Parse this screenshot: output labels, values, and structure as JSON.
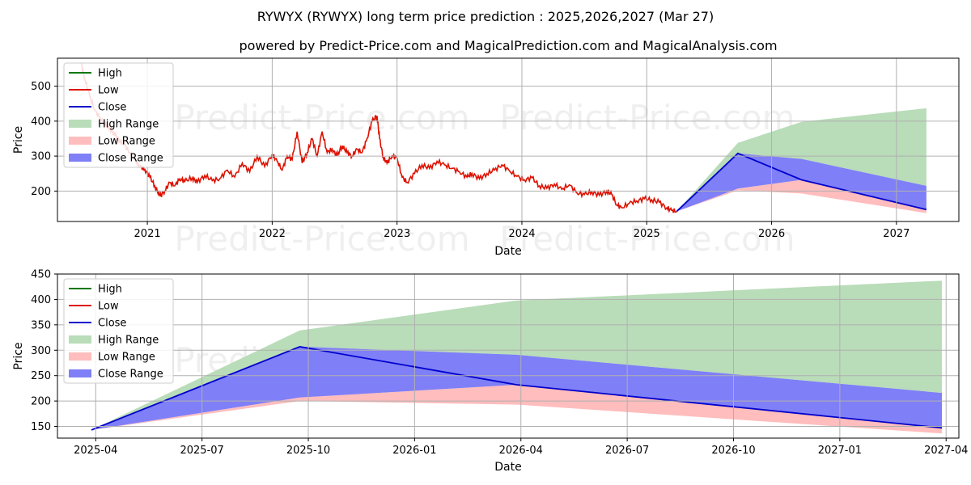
{
  "title": "RYWYX (RYWYX) long term price prediction : 2025,2026,2027 (Mar 27)",
  "subtitle": "powered by Predict-Price.com and MagicalPrediction.com and MagicalAnalysis.com",
  "watermark": "Predict-Price.com",
  "legend": [
    "High",
    "Low",
    "Close",
    "High Range",
    "Low Range",
    "Close Range"
  ],
  "colors": {
    "high": "#007700",
    "low": "#dd1100",
    "close": "#0000cc",
    "high_range": "#b9dcb9",
    "low_range": "#ffbdbd",
    "close_range": "#7f7ff7",
    "grid": "#b0b0b0"
  },
  "chart_data": [
    {
      "type": "line",
      "name": "long-term",
      "xlabel": "Date",
      "ylabel": "Price",
      "grid": true,
      "legend_position": "upper-left",
      "xlim": [
        2020.28,
        2027.5
      ],
      "ylim": [
        113,
        580
      ],
      "x_ticks": [
        {
          "label": "2021",
          "x": 2021.0
        },
        {
          "label": "2022",
          "x": 2022.0
        },
        {
          "label": "2023",
          "x": 2023.0
        },
        {
          "label": "2024",
          "x": 2024.0
        },
        {
          "label": "2025",
          "x": 2025.0
        },
        {
          "label": "2026",
          "x": 2026.0
        },
        {
          "label": "2027",
          "x": 2027.0
        }
      ],
      "y_ticks": [
        200,
        300,
        400,
        500
      ],
      "history": {
        "name": "Low",
        "points": [
          [
            2020.47,
            565
          ],
          [
            2020.5,
            520
          ],
          [
            2020.54,
            470
          ],
          [
            2020.58,
            430
          ],
          [
            2020.62,
            410
          ],
          [
            2020.66,
            390
          ],
          [
            2020.7,
            380
          ],
          [
            2020.74,
            360
          ],
          [
            2020.78,
            345
          ],
          [
            2020.82,
            330
          ],
          [
            2020.86,
            310
          ],
          [
            2020.9,
            290
          ],
          [
            2020.94,
            270
          ],
          [
            2020.98,
            262
          ],
          [
            2021.02,
            240
          ],
          [
            2021.06,
            215
          ],
          [
            2021.1,
            185
          ],
          [
            2021.14,
            200
          ],
          [
            2021.18,
            225
          ],
          [
            2021.22,
            215
          ],
          [
            2021.26,
            235
          ],
          [
            2021.3,
            228
          ],
          [
            2021.36,
            238
          ],
          [
            2021.4,
            225
          ],
          [
            2021.46,
            245
          ],
          [
            2021.52,
            230
          ],
          [
            2021.58,
            235
          ],
          [
            2021.64,
            260
          ],
          [
            2021.7,
            240
          ],
          [
            2021.76,
            280
          ],
          [
            2021.82,
            255
          ],
          [
            2021.88,
            300
          ],
          [
            2021.94,
            270
          ],
          [
            2022.0,
            305
          ],
          [
            2022.04,
            285
          ],
          [
            2022.08,
            260
          ],
          [
            2022.12,
            300
          ],
          [
            2022.16,
            290
          ],
          [
            2022.2,
            370
          ],
          [
            2022.24,
            280
          ],
          [
            2022.28,
            310
          ],
          [
            2022.32,
            350
          ],
          [
            2022.36,
            300
          ],
          [
            2022.4,
            370
          ],
          [
            2022.44,
            310
          ],
          [
            2022.48,
            320
          ],
          [
            2022.52,
            300
          ],
          [
            2022.56,
            330
          ],
          [
            2022.6,
            310
          ],
          [
            2022.64,
            300
          ],
          [
            2022.68,
            320
          ],
          [
            2022.72,
            310
          ],
          [
            2022.76,
            350
          ],
          [
            2022.8,
            400
          ],
          [
            2022.84,
            415
          ],
          [
            2022.86,
            350
          ],
          [
            2022.89,
            295
          ],
          [
            2022.92,
            280
          ],
          [
            2022.96,
            300
          ],
          [
            2023.0,
            295
          ],
          [
            2023.04,
            240
          ],
          [
            2023.08,
            225
          ],
          [
            2023.14,
            250
          ],
          [
            2023.2,
            275
          ],
          [
            2023.26,
            265
          ],
          [
            2023.32,
            285
          ],
          [
            2023.38,
            275
          ],
          [
            2023.44,
            265
          ],
          [
            2023.5,
            255
          ],
          [
            2023.56,
            240
          ],
          [
            2023.6,
            250
          ],
          [
            2023.66,
            235
          ],
          [
            2023.72,
            250
          ],
          [
            2023.78,
            260
          ],
          [
            2023.84,
            275
          ],
          [
            2023.9,
            258
          ],
          [
            2023.96,
            242
          ],
          [
            2024.02,
            232
          ],
          [
            2024.08,
            238
          ],
          [
            2024.14,
            215
          ],
          [
            2024.2,
            208
          ],
          [
            2024.26,
            220
          ],
          [
            2024.32,
            205
          ],
          [
            2024.38,
            218
          ],
          [
            2024.44,
            195
          ],
          [
            2024.5,
            190
          ],
          [
            2024.56,
            198
          ],
          [
            2024.62,
            188
          ],
          [
            2024.68,
            200
          ],
          [
            2024.72,
            190
          ],
          [
            2024.76,
            160
          ],
          [
            2024.8,
            152
          ],
          [
            2024.86,
            165
          ],
          [
            2024.92,
            172
          ],
          [
            2024.98,
            178
          ],
          [
            2025.04,
            175
          ],
          [
            2025.1,
            168
          ],
          [
            2025.16,
            152
          ],
          [
            2025.2,
            145
          ],
          [
            2025.24,
            142
          ]
        ]
      },
      "forecast_x": [
        2025.24,
        2025.73,
        2026.24,
        2027.24
      ],
      "high_range": {
        "lower": [
          142,
          308,
          292,
          215
        ],
        "upper": [
          142,
          338,
          398,
          437
        ]
      },
      "low_range": {
        "lower": [
          142,
          202,
          193,
          137
        ],
        "upper": [
          142,
          207,
          232,
          148
        ]
      },
      "close_range": {
        "lower": [
          142,
          207,
          232,
          148
        ],
        "upper": [
          142,
          308,
          292,
          215
        ]
      },
      "close": [
        142,
        308,
        232,
        147
      ]
    },
    {
      "type": "line",
      "name": "forecast-zoom",
      "xlabel": "Date",
      "ylabel": "Price",
      "grid": true,
      "legend_position": "upper-left",
      "xlim": [
        2025.16,
        2027.28
      ],
      "ylim": [
        127,
        450
      ],
      "x_ticks": [
        {
          "label": "2025-04",
          "x": 2025.25
        },
        {
          "label": "2025-07",
          "x": 2025.5
        },
        {
          "label": "2025-10",
          "x": 2025.75
        },
        {
          "label": "2026-01",
          "x": 2026.0
        },
        {
          "label": "2026-04",
          "x": 2026.25
        },
        {
          "label": "2026-07",
          "x": 2026.5
        },
        {
          "label": "2026-10",
          "x": 2026.75
        },
        {
          "label": "2027-01",
          "x": 2027.0
        },
        {
          "label": "2027-04",
          "x": 2027.25
        }
      ],
      "y_ticks": [
        150,
        200,
        250,
        300,
        350,
        400,
        450
      ],
      "forecast_x": [
        2025.24,
        2025.73,
        2026.24,
        2027.24
      ],
      "high_range": {
        "lower": [
          143,
          307,
          291,
          216
        ],
        "upper": [
          143,
          339,
          398,
          437
        ]
      },
      "low_range": {
        "lower": [
          143,
          200,
          193,
          136
        ],
        "upper": [
          143,
          207,
          232,
          147
        ]
      },
      "close_range": {
        "lower": [
          143,
          207,
          232,
          147
        ],
        "upper": [
          143,
          307,
          291,
          216
        ]
      },
      "close": [
        143,
        307,
        232,
        147
      ]
    }
  ]
}
